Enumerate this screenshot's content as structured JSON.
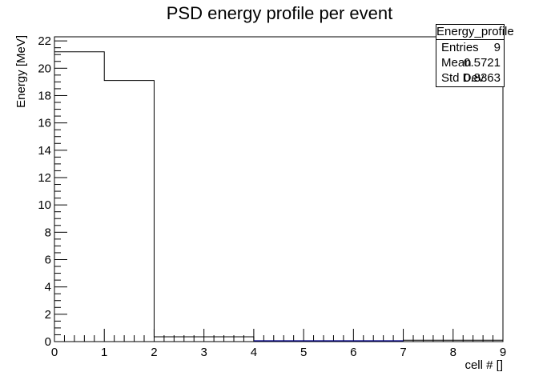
{
  "chart_data": {
    "type": "bar",
    "title": "PSD energy profile per event",
    "xlabel": "cell # []",
    "ylabel": "Energy [MeV]",
    "xlim": [
      0,
      9
    ],
    "ylim": [
      0,
      22.3
    ],
    "x_ticks": [
      "0",
      "1",
      "2",
      "3",
      "4",
      "5",
      "6",
      "7",
      "8",
      "9"
    ],
    "y_ticks": [
      "0",
      "2",
      "4",
      "6",
      "8",
      "10",
      "12",
      "14",
      "16",
      "18",
      "20",
      "22"
    ],
    "bin_edges": [
      0,
      1,
      2,
      3,
      4,
      5,
      6,
      7,
      8,
      9
    ],
    "values": [
      21.2,
      19.1,
      0.35,
      0.35,
      0.05,
      0.05,
      0.05,
      0.1,
      0.1
    ],
    "grid": false,
    "stats": {
      "name": "Energy_profile",
      "rows": [
        {
          "label": "Entries",
          "value": "9"
        },
        {
          "label": "Mean",
          "value": "0.5721"
        },
        {
          "label": "Std Dev",
          "value": "0.8363"
        }
      ]
    }
  }
}
